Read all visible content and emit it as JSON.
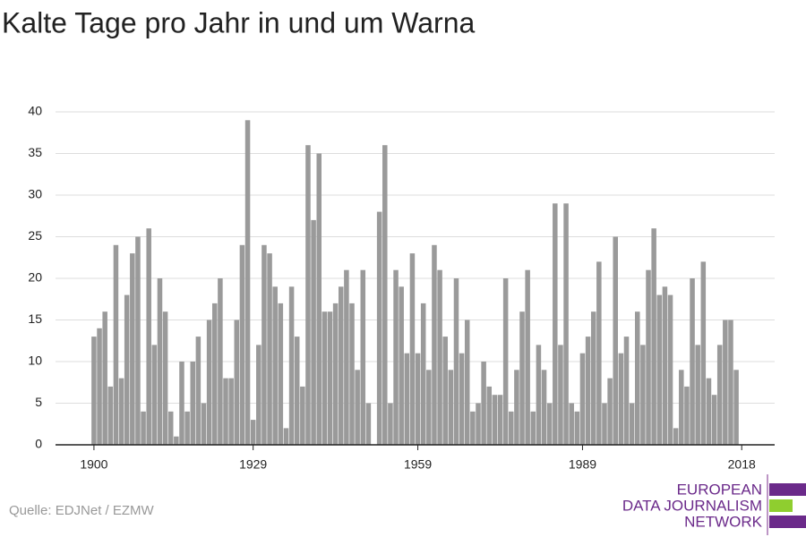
{
  "chart_data": {
    "type": "bar",
    "title": "Kalte Tage pro Jahr in und um Warna",
    "source": "Quelle: EDJNet / EZMW",
    "logo": [
      "EUROPEAN",
      "DATA JOURNALISM",
      "NETWORK"
    ],
    "color": "#9a9a9a",
    "grid": true,
    "x": [
      1900,
      1901,
      1902,
      1903,
      1904,
      1905,
      1906,
      1907,
      1908,
      1909,
      1910,
      1911,
      1912,
      1913,
      1914,
      1915,
      1916,
      1917,
      1918,
      1919,
      1920,
      1921,
      1922,
      1923,
      1924,
      1925,
      1926,
      1927,
      1928,
      1929,
      1930,
      1931,
      1932,
      1933,
      1934,
      1935,
      1936,
      1937,
      1938,
      1939,
      1940,
      1941,
      1942,
      1943,
      1944,
      1945,
      1946,
      1947,
      1948,
      1949,
      1950,
      1951,
      1952,
      1953,
      1954,
      1955,
      1956,
      1957,
      1958,
      1959,
      1960,
      1961,
      1962,
      1963,
      1964,
      1965,
      1966,
      1967,
      1968,
      1969,
      1970,
      1971,
      1972,
      1973,
      1974,
      1975,
      1976,
      1977,
      1978,
      1979,
      1980,
      1981,
      1982,
      1983,
      1984,
      1985,
      1986,
      1987,
      1988,
      1989,
      1990,
      1991,
      1992,
      1993,
      1994,
      1995,
      1996,
      1997,
      1998,
      1999,
      2000,
      2001,
      2002,
      2003,
      2004,
      2005,
      2006,
      2007,
      2008,
      2009,
      2010,
      2011,
      2012,
      2013,
      2014,
      2015,
      2016,
      2017
    ],
    "values": [
      13,
      14,
      16,
      7,
      24,
      8,
      18,
      23,
      25,
      4,
      26,
      12,
      20,
      16,
      4,
      1,
      10,
      4,
      10,
      13,
      5,
      15,
      17,
      20,
      8,
      8,
      15,
      24,
      39,
      3,
      12,
      24,
      23,
      19,
      17,
      2,
      19,
      13,
      7,
      36,
      27,
      35,
      16,
      16,
      17,
      19,
      21,
      17,
      9,
      21,
      5,
      null,
      28,
      36,
      5,
      21,
      19,
      11,
      23,
      11,
      17,
      9,
      24,
      21,
      13,
      9,
      20,
      11,
      15,
      4,
      5,
      10,
      7,
      6,
      6,
      20,
      4,
      9,
      16,
      21,
      4,
      12,
      9,
      5,
      29,
      12,
      29,
      5,
      4,
      11,
      13,
      16,
      22,
      5,
      8,
      25,
      11,
      13,
      5,
      16,
      12,
      21,
      26,
      18,
      19,
      18,
      2,
      9,
      7,
      20,
      12,
      22,
      8,
      6,
      12,
      15,
      15,
      9
    ],
    "xlim": [
      1893,
      2024
    ],
    "xticks": [
      1900,
      1929,
      1959,
      1989,
      2018
    ],
    "ylim": [
      0,
      40
    ],
    "yticks": [
      0,
      5,
      10,
      15,
      20,
      25,
      30,
      35,
      40
    ]
  }
}
